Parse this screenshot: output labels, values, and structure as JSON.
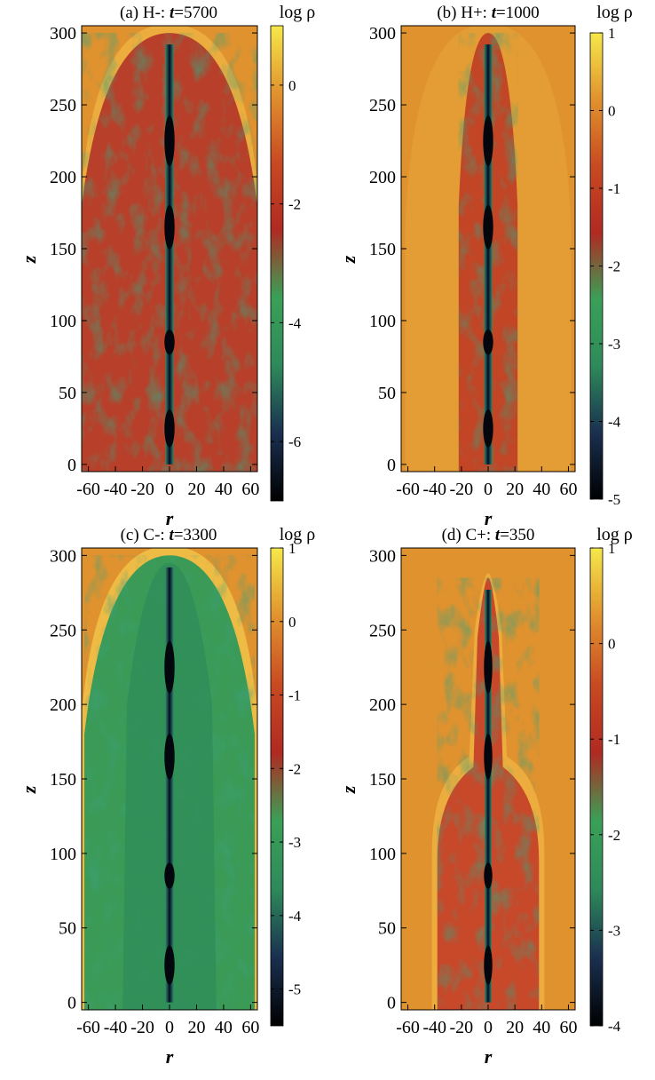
{
  "figure": {
    "colorbar_label": "log ρ",
    "xlabel": "r",
    "ylabel": "z",
    "colormap": [
      "#000000",
      "#1a3050",
      "#2e8a5a",
      "#3aa057",
      "#b02a22",
      "#c84a22",
      "#e0922e",
      "#f6e84a"
    ],
    "ambient_color": "#e0922e"
  },
  "chart_data": [
    {
      "type": "heatmap",
      "title_prefix": "(a) H-: ",
      "title_var": "t",
      "title_suffix": "=5700",
      "xlabel": "r",
      "ylabel": "z",
      "xlim": [
        -65,
        65
      ],
      "ylim": [
        -5,
        305
      ],
      "x_ticks": [
        "-60",
        "-40",
        "-20",
        "0",
        "20",
        "40",
        "60"
      ],
      "x_tick_values": [
        -60,
        -40,
        -20,
        0,
        20,
        40,
        60
      ],
      "y_ticks": [
        "0",
        "50",
        "100",
        "150",
        "200",
        "250",
        "300"
      ],
      "y_tick_values": [
        0,
        50,
        100,
        150,
        200,
        250,
        300
      ],
      "colorbar": {
        "label": "log ρ",
        "min": -7,
        "max": 1,
        "ticks": [
          "0",
          "-2",
          "-4",
          "-6"
        ],
        "tick_values": [
          0,
          -2,
          -4,
          -6
        ]
      },
      "structure": {
        "cocoon_halfwidth": 65,
        "cocoon_top": 300,
        "shell": "wide",
        "cocoon_fill": "#b8402a"
      }
    },
    {
      "type": "heatmap",
      "title_prefix": "(b) H+: ",
      "title_var": "t",
      "title_suffix": "=1000",
      "xlabel": "r",
      "ylabel": "z",
      "xlim": [
        -65,
        65
      ],
      "ylim": [
        -5,
        305
      ],
      "x_ticks": [
        "-60",
        "-40",
        "-20",
        "0",
        "20",
        "40",
        "60"
      ],
      "x_tick_values": [
        -60,
        -40,
        -20,
        0,
        20,
        40,
        60
      ],
      "y_ticks": [
        "0",
        "50",
        "100",
        "150",
        "200",
        "250",
        "300"
      ],
      "y_tick_values": [
        0,
        50,
        100,
        150,
        200,
        250,
        300
      ],
      "colorbar": {
        "label": "log ρ",
        "min": -5,
        "max": 1,
        "ticks": [
          "1",
          "0",
          "-1",
          "-2",
          "-3",
          "-4",
          "-5"
        ],
        "tick_values": [
          1,
          0,
          -1,
          -2,
          -3,
          -4,
          -5
        ]
      },
      "structure": {
        "cocoon_halfwidth": 22,
        "cocoon_top": 300,
        "shell": "diffuse",
        "cocoon_fill": "#c24526"
      }
    },
    {
      "type": "heatmap",
      "title_prefix": "(c) C-: ",
      "title_var": "t",
      "title_suffix": "=3300",
      "xlabel": "r",
      "ylabel": "z",
      "xlim": [
        -65,
        65
      ],
      "ylim": [
        -5,
        305
      ],
      "x_ticks": [
        "-60",
        "-40",
        "-20",
        "0",
        "20",
        "40",
        "60"
      ],
      "x_tick_values": [
        -60,
        -40,
        -20,
        0,
        20,
        40,
        60
      ],
      "y_ticks": [
        "0",
        "50",
        "100",
        "150",
        "200",
        "250",
        "300"
      ],
      "y_tick_values": [
        0,
        50,
        100,
        150,
        200,
        250,
        300
      ],
      "colorbar": {
        "label": "log ρ",
        "min": -5.5,
        "max": 1,
        "ticks": [
          "1",
          "0",
          "-1",
          "-2",
          "-3",
          "-4",
          "-5"
        ],
        "tick_values": [
          1,
          0,
          -1,
          -2,
          -3,
          -4,
          -5
        ]
      },
      "structure": {
        "cocoon_halfwidth": 63,
        "cocoon_top": 300,
        "shell": "bright",
        "cocoon_fill": "#3a9a56"
      }
    },
    {
      "type": "heatmap",
      "title_prefix": "(d) C+: ",
      "title_var": "t",
      "title_suffix": "=350",
      "xlabel": "r",
      "ylabel": "z",
      "xlim": [
        -65,
        65
      ],
      "ylim": [
        -5,
        305
      ],
      "x_ticks": [
        "-60",
        "-40",
        "-20",
        "0",
        "20",
        "40",
        "60"
      ],
      "x_tick_values": [
        -60,
        -40,
        -20,
        0,
        20,
        40,
        60
      ],
      "y_ticks": [
        "0",
        "50",
        "100",
        "150",
        "200",
        "250",
        "300"
      ],
      "y_tick_values": [
        0,
        50,
        100,
        150,
        200,
        250,
        300
      ],
      "colorbar": {
        "label": "log ρ",
        "min": -4,
        "max": 1,
        "ticks": [
          "1",
          "0",
          "-1",
          "-2",
          "-3",
          "-4"
        ],
        "tick_values": [
          1,
          0,
          -1,
          -2,
          -3,
          -4
        ]
      },
      "structure": {
        "cocoon_halfwidth": 38,
        "cocoon_top": 285,
        "shell": "narrow",
        "cocoon_fill": "#c8482a"
      }
    }
  ]
}
